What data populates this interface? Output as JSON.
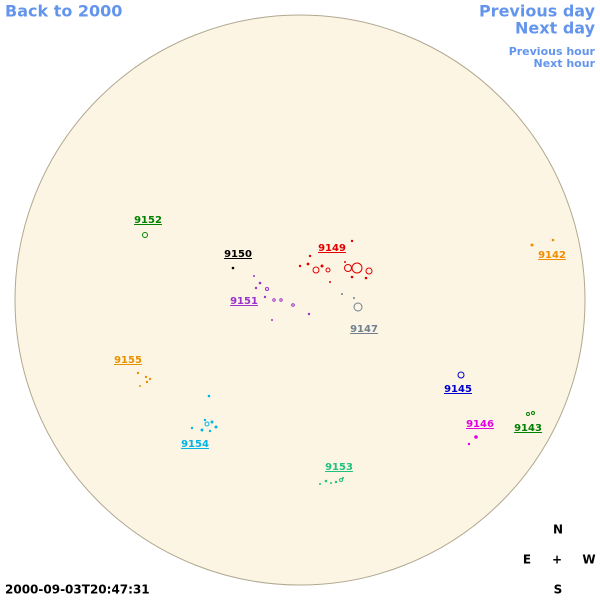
{
  "nav": {
    "back": "Back to 2000",
    "previous_day": "Previous day",
    "next_day": "Next day",
    "previous_hour": "Previous hour",
    "next_hour": "Next hour"
  },
  "regions": [
    {
      "label": "9152",
      "color": "#008000"
    },
    {
      "label": "9150",
      "color": "#000000"
    },
    {
      "label": "9149",
      "color": "#e00000"
    },
    {
      "label": "9151",
      "color": "#9932cc"
    },
    {
      "label": "9147",
      "color": "#708090"
    },
    {
      "label": "9142",
      "color": "#f08c00"
    },
    {
      "label": "9155",
      "color": "#e89000"
    },
    {
      "label": "9145",
      "color": "#0000cd"
    },
    {
      "label": "9154",
      "color": "#00b4e6"
    },
    {
      "label": "9146",
      "color": "#e000e0"
    },
    {
      "label": "9143",
      "color": "#008000"
    },
    {
      "label": "9153",
      "color": "#20c080"
    }
  ],
  "compass": {
    "north": "N",
    "east": "E",
    "center": "+",
    "west": "W",
    "south": "S"
  },
  "timestamp": "2000-09-03T20:47:31"
}
